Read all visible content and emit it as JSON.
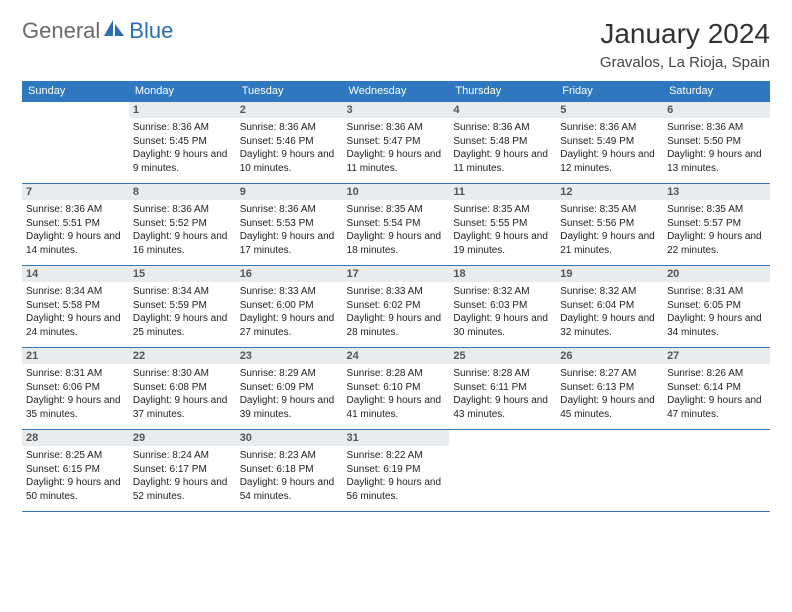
{
  "brand": {
    "part1": "General",
    "part2": "Blue"
  },
  "title": "January 2024",
  "location": "Gravalos, La Rioja, Spain",
  "colors": {
    "header_bg": "#2f78bf",
    "header_text": "#ffffff",
    "daynum_bg": "#e9ecef",
    "rule": "#2f78bf"
  },
  "day_headers": [
    "Sunday",
    "Monday",
    "Tuesday",
    "Wednesday",
    "Thursday",
    "Friday",
    "Saturday"
  ],
  "weeks": [
    [
      null,
      {
        "n": "1",
        "sr": "8:36 AM",
        "ss": "5:45 PM",
        "dl": "9 hours and 9 minutes."
      },
      {
        "n": "2",
        "sr": "8:36 AM",
        "ss": "5:46 PM",
        "dl": "9 hours and 10 minutes."
      },
      {
        "n": "3",
        "sr": "8:36 AM",
        "ss": "5:47 PM",
        "dl": "9 hours and 11 minutes."
      },
      {
        "n": "4",
        "sr": "8:36 AM",
        "ss": "5:48 PM",
        "dl": "9 hours and 11 minutes."
      },
      {
        "n": "5",
        "sr": "8:36 AM",
        "ss": "5:49 PM",
        "dl": "9 hours and 12 minutes."
      },
      {
        "n": "6",
        "sr": "8:36 AM",
        "ss": "5:50 PM",
        "dl": "9 hours and 13 minutes."
      }
    ],
    [
      {
        "n": "7",
        "sr": "8:36 AM",
        "ss": "5:51 PM",
        "dl": "9 hours and 14 minutes."
      },
      {
        "n": "8",
        "sr": "8:36 AM",
        "ss": "5:52 PM",
        "dl": "9 hours and 16 minutes."
      },
      {
        "n": "9",
        "sr": "8:36 AM",
        "ss": "5:53 PM",
        "dl": "9 hours and 17 minutes."
      },
      {
        "n": "10",
        "sr": "8:35 AM",
        "ss": "5:54 PM",
        "dl": "9 hours and 18 minutes."
      },
      {
        "n": "11",
        "sr": "8:35 AM",
        "ss": "5:55 PM",
        "dl": "9 hours and 19 minutes."
      },
      {
        "n": "12",
        "sr": "8:35 AM",
        "ss": "5:56 PM",
        "dl": "9 hours and 21 minutes."
      },
      {
        "n": "13",
        "sr": "8:35 AM",
        "ss": "5:57 PM",
        "dl": "9 hours and 22 minutes."
      }
    ],
    [
      {
        "n": "14",
        "sr": "8:34 AM",
        "ss": "5:58 PM",
        "dl": "9 hours and 24 minutes."
      },
      {
        "n": "15",
        "sr": "8:34 AM",
        "ss": "5:59 PM",
        "dl": "9 hours and 25 minutes."
      },
      {
        "n": "16",
        "sr": "8:33 AM",
        "ss": "6:00 PM",
        "dl": "9 hours and 27 minutes."
      },
      {
        "n": "17",
        "sr": "8:33 AM",
        "ss": "6:02 PM",
        "dl": "9 hours and 28 minutes."
      },
      {
        "n": "18",
        "sr": "8:32 AM",
        "ss": "6:03 PM",
        "dl": "9 hours and 30 minutes."
      },
      {
        "n": "19",
        "sr": "8:32 AM",
        "ss": "6:04 PM",
        "dl": "9 hours and 32 minutes."
      },
      {
        "n": "20",
        "sr": "8:31 AM",
        "ss": "6:05 PM",
        "dl": "9 hours and 34 minutes."
      }
    ],
    [
      {
        "n": "21",
        "sr": "8:31 AM",
        "ss": "6:06 PM",
        "dl": "9 hours and 35 minutes."
      },
      {
        "n": "22",
        "sr": "8:30 AM",
        "ss": "6:08 PM",
        "dl": "9 hours and 37 minutes."
      },
      {
        "n": "23",
        "sr": "8:29 AM",
        "ss": "6:09 PM",
        "dl": "9 hours and 39 minutes."
      },
      {
        "n": "24",
        "sr": "8:28 AM",
        "ss": "6:10 PM",
        "dl": "9 hours and 41 minutes."
      },
      {
        "n": "25",
        "sr": "8:28 AM",
        "ss": "6:11 PM",
        "dl": "9 hours and 43 minutes."
      },
      {
        "n": "26",
        "sr": "8:27 AM",
        "ss": "6:13 PM",
        "dl": "9 hours and 45 minutes."
      },
      {
        "n": "27",
        "sr": "8:26 AM",
        "ss": "6:14 PM",
        "dl": "9 hours and 47 minutes."
      }
    ],
    [
      {
        "n": "28",
        "sr": "8:25 AM",
        "ss": "6:15 PM",
        "dl": "9 hours and 50 minutes."
      },
      {
        "n": "29",
        "sr": "8:24 AM",
        "ss": "6:17 PM",
        "dl": "9 hours and 52 minutes."
      },
      {
        "n": "30",
        "sr": "8:23 AM",
        "ss": "6:18 PM",
        "dl": "9 hours and 54 minutes."
      },
      {
        "n": "31",
        "sr": "8:22 AM",
        "ss": "6:19 PM",
        "dl": "9 hours and 56 minutes."
      },
      null,
      null,
      null
    ]
  ],
  "labels": {
    "sunrise": "Sunrise: ",
    "sunset": "Sunset: ",
    "daylight": "Daylight: "
  }
}
